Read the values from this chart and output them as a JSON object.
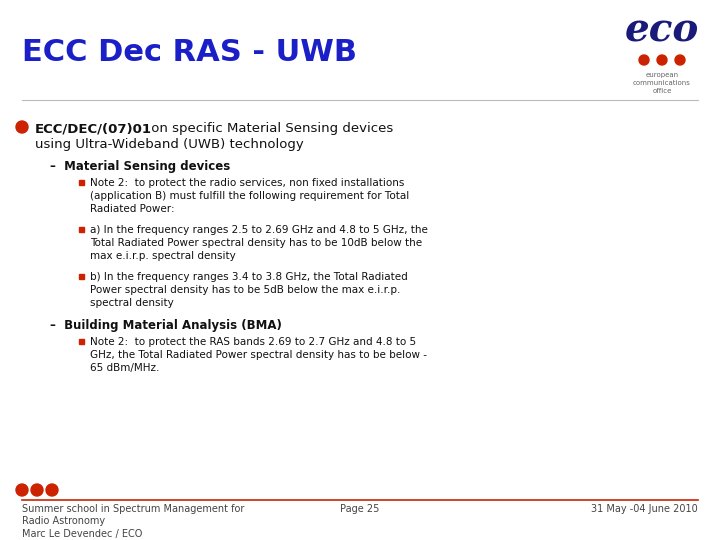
{
  "title": "ECC Dec RAS - UWB",
  "title_color": "#1B1FC8",
  "title_fontsize": 22,
  "background_color": "#FFFFFF",
  "bullet_color": "#CC2200",
  "footer_left": "Summer school in Spectrum Management for\nRadio Astronomy\nMarc Le Devendec / ECO",
  "footer_center": "Page 25",
  "footer_right": "31 May -04 June 2010",
  "footer_color": "#444444",
  "footer_fontsize": 7,
  "dot_color": "#CC2200",
  "eco_text_color": "#1A1A7A",
  "line_color": "#CC2200",
  "sub_dash_color": "#333333",
  "body_text_color": "#111111",
  "item_fontsize": 7.5,
  "sub_label_fontsize": 8.5,
  "bullet1_fontsize": 9.5
}
